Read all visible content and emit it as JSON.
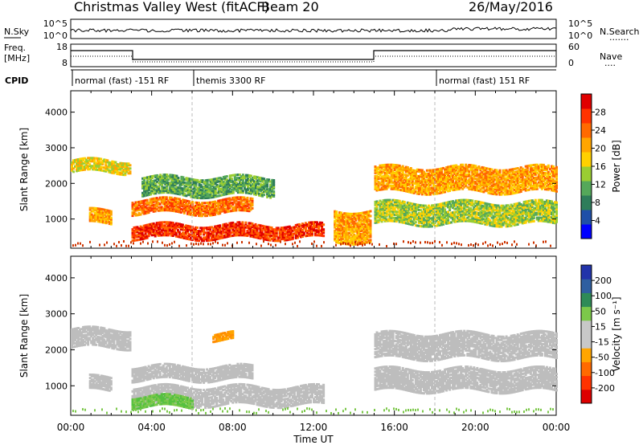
{
  "header": {
    "title": "Christmas Valley West (fitACF)",
    "beam": "Beam 20",
    "date": "26/May/2016"
  },
  "noise_panel": {
    "left_label": "N.Sky",
    "left_ticks": [
      "10^5",
      "10^0"
    ],
    "right_ticks": [
      "10^5",
      "10^0"
    ],
    "right_label": "N.Search",
    "right_legend_line": "......."
  },
  "freq_panel": {
    "label_line1": "Freq.",
    "label_line2": "[MHz]",
    "left_ticks": [
      "18",
      "8"
    ],
    "right_ticks": [
      "60",
      "0"
    ],
    "right_label": "Nave",
    "right_legend_line": "...."
  },
  "cpid": {
    "label": "CPID",
    "segments": [
      {
        "start_hour": 0,
        "end_hour": 6,
        "text": "normal (fast) -151 RF"
      },
      {
        "start_hour": 6,
        "end_hour": 18,
        "text": "themis 3300 RF"
      },
      {
        "start_hour": 18,
        "end_hour": 24,
        "text": "normal (fast) 151 RF"
      }
    ]
  },
  "colors": {
    "power_scale": [
      "#0000ff",
      "#1f4fa8",
      "#2e7d5a",
      "#55a85a",
      "#9acd32",
      "#ffd000",
      "#ffa500",
      "#ff6a00",
      "#ff3300",
      "#e00000"
    ],
    "velocity_scale": [
      "#2233aa",
      "#2f5fa0",
      "#2e8b57",
      "#7cc84a",
      "#c8c8c8",
      "#c8c8c8",
      "#ffa500",
      "#ff6a00",
      "#ff3300",
      "#dd0000"
    ],
    "ground_scatter": "#bdbdbd"
  },
  "chart_data": [
    {
      "type": "heatmap",
      "panel": "power",
      "ylabel": "Slant Range [km]",
      "yticks": [
        1000,
        2000,
        3000,
        4000
      ],
      "ylim": [
        180,
        4600
      ],
      "xlim": [
        0,
        24
      ],
      "colorbar": {
        "label": "Power [dB]",
        "ticks": [
          4,
          8,
          12,
          16,
          20,
          24,
          28
        ],
        "range": [
          0,
          32
        ]
      },
      "echo_bands": [
        {
          "start_hour": 0,
          "end_hour": 2.9,
          "range_km": [
            2350,
            2700
          ],
          "power_db": 16
        },
        {
          "start_hour": 0.9,
          "end_hour": 2.0,
          "range_km": [
            900,
            1300
          ],
          "power_db": 22
        },
        {
          "start_hour": 3.0,
          "end_hour": 9.0,
          "range_km": [
            1200,
            1600
          ],
          "power_db": 26
        },
        {
          "start_hour": 3.0,
          "end_hour": 12.5,
          "range_km": [
            500,
            900
          ],
          "power_db": 28
        },
        {
          "start_hour": 3.5,
          "end_hour": 10.0,
          "range_km": [
            1700,
            2200
          ],
          "power_db": 12
        },
        {
          "start_hour": 13.0,
          "end_hour": 14.8,
          "range_km": [
            400,
            1300
          ],
          "power_db": 20
        },
        {
          "start_hour": 15.0,
          "end_hour": 24.0,
          "range_km": [
            1800,
            2500
          ],
          "power_db": 20
        },
        {
          "start_hour": 15.0,
          "end_hour": 24.0,
          "range_km": [
            900,
            1500
          ],
          "power_db": 14
        }
      ]
    },
    {
      "type": "heatmap",
      "panel": "velocity",
      "ylabel": "Slant Range [km]",
      "yticks": [
        1000,
        2000,
        3000,
        4000
      ],
      "ylim": [
        180,
        4600
      ],
      "xlim": [
        0,
        24
      ],
      "xlabel": "Time UT",
      "xticks": [
        "00:00",
        "04:00",
        "08:00",
        "12:00",
        "16:00",
        "20:00",
        "00:00"
      ],
      "colorbar": {
        "label": "Velocity [m s⁻¹]",
        "ticks": [
          200,
          100,
          50,
          15,
          -15,
          -50,
          -100,
          -200
        ]
      },
      "echo_bands": [
        {
          "start_hour": 0,
          "end_hour": 2.9,
          "range_km": [
            2100,
            2600
          ],
          "velocity": 0
        },
        {
          "start_hour": 0.9,
          "end_hour": 2.0,
          "range_km": [
            900,
            1300
          ],
          "velocity": 0
        },
        {
          "start_hour": 3.0,
          "end_hour": 9.0,
          "range_km": [
            1200,
            1600
          ],
          "velocity": 0
        },
        {
          "start_hour": 3.0,
          "end_hour": 12.5,
          "range_km": [
            500,
            1000
          ],
          "velocity": 0
        },
        {
          "start_hour": 3.0,
          "end_hour": 6.0,
          "range_km": [
            450,
            750
          ],
          "velocity": 30
        },
        {
          "start_hour": 7.0,
          "end_hour": 8.0,
          "range_km": [
            2300,
            2500
          ],
          "velocity": -60
        },
        {
          "start_hour": 15.0,
          "end_hour": 24.0,
          "range_km": [
            1800,
            2500
          ],
          "velocity": 0
        },
        {
          "start_hour": 15.0,
          "end_hour": 24.0,
          "range_km": [
            900,
            1500
          ],
          "velocity": 0
        }
      ]
    }
  ]
}
